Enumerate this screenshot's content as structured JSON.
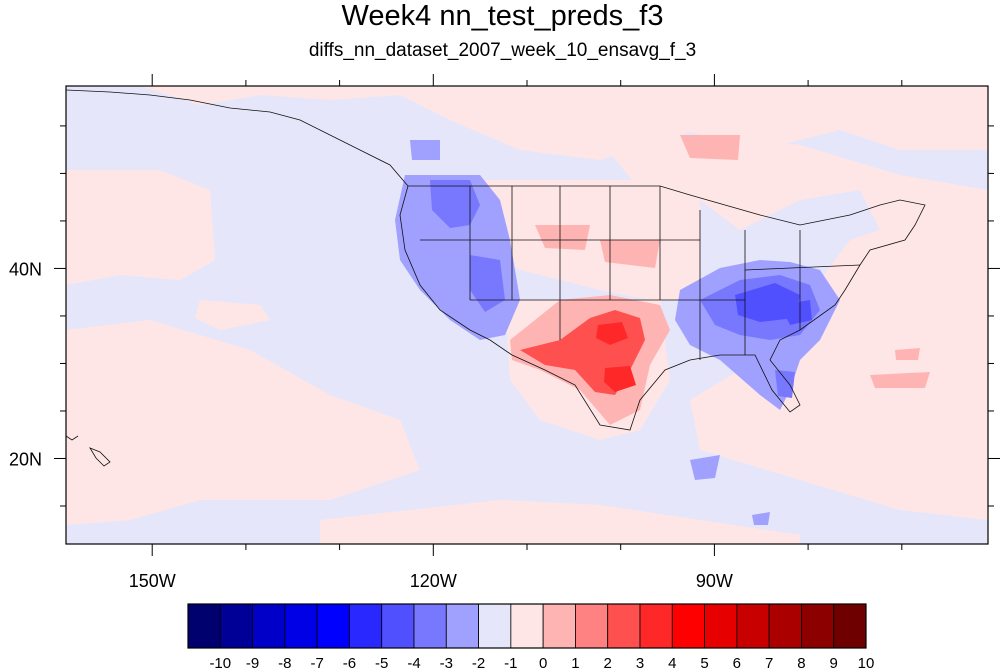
{
  "title": "Week4 nn_test_preds_f3",
  "subtitle": "diffs_nn_dataset_2007_week_10_ensavg_f_3",
  "map": {
    "lon_range": [
      -159.2,
      -60.8
    ],
    "lat_range": [
      11,
      59.2
    ],
    "lon_tick_labels": [
      {
        "lon": -150,
        "label": "150W"
      },
      {
        "lon": -120,
        "label": "120W"
      },
      {
        "lon": -90,
        "label": "90W"
      }
    ],
    "lat_tick_labels": [
      {
        "lat": 40,
        "label": "40N"
      },
      {
        "lat": 20,
        "label": "20N"
      }
    ],
    "colors": {
      "ocean_neg_tint": "#e6e6fa",
      "ocean_pos_tint": "#ffe6e6",
      "coast": "#111111"
    }
  },
  "colorbar": {
    "colors": [
      "#00006e",
      "#000096",
      "#0000c8",
      "#0000e6",
      "#0000ff",
      "#2828ff",
      "#5050ff",
      "#7878ff",
      "#a0a0ff",
      "#e6e6fa",
      "#ffe6e6",
      "#ffb4b4",
      "#ff8282",
      "#ff5050",
      "#ff2828",
      "#ff0000",
      "#e60000",
      "#c80000",
      "#aa0000",
      "#8c0000",
      "#6e0000"
    ],
    "labels": [
      "-10",
      "-9",
      "-8",
      "-7",
      "-6",
      "-5",
      "-4",
      "-3",
      "-2",
      "-1",
      "0",
      "1",
      "2",
      "3",
      "4",
      "5",
      "6",
      "7",
      "8",
      "9",
      "10"
    ]
  }
}
